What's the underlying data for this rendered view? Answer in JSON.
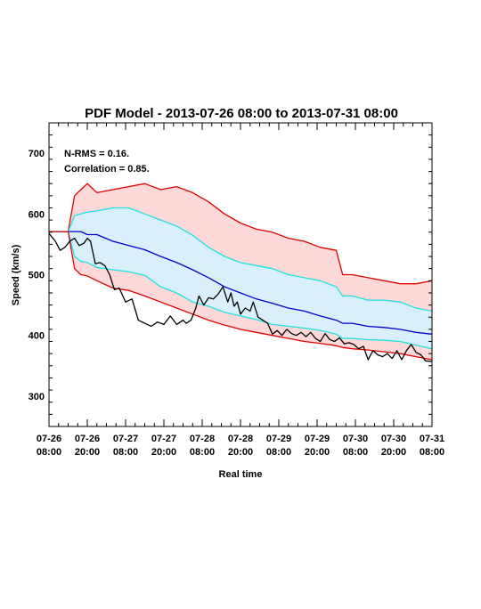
{
  "chart_data": {
    "type": "line",
    "title": "PDF Model - 2013-07-26 08:00 to 2013-07-31 08:00",
    "xlabel": "Real time",
    "ylabel": "Speed (km/s)",
    "xlim_hours": [
      0,
      120
    ],
    "ylim": [
      250,
      750
    ],
    "yticks": [
      300,
      400,
      500,
      600,
      700
    ],
    "xticks": [
      {
        "hour": 0,
        "date": "07-26",
        "time": "08:00"
      },
      {
        "hour": 12,
        "date": "07-26",
        "time": "20:00"
      },
      {
        "hour": 24,
        "date": "07-27",
        "time": "08:00"
      },
      {
        "hour": 36,
        "date": "07-27",
        "time": "20:00"
      },
      {
        "hour": 48,
        "date": "07-28",
        "time": "08:00"
      },
      {
        "hour": 60,
        "date": "07-28",
        "time": "20:00"
      },
      {
        "hour": 72,
        "date": "07-29",
        "time": "08:00"
      },
      {
        "hour": 84,
        "date": "07-29",
        "time": "20:00"
      },
      {
        "hour": 96,
        "date": "07-30",
        "time": "08:00"
      },
      {
        "hour": 108,
        "date": "07-30",
        "time": "20:00"
      },
      {
        "hour": 120,
        "date": "07-31",
        "time": "08:00"
      }
    ],
    "annotations": [
      "N-RMS = 0.16.",
      "Correlation = 0.85."
    ],
    "x_hours": [
      0,
      6,
      8,
      10,
      12,
      15,
      20,
      25,
      30,
      35,
      40,
      45,
      50,
      55,
      60,
      65,
      70,
      75,
      80,
      85,
      90,
      92,
      95,
      100,
      105,
      110,
      115,
      120
    ],
    "series": [
      {
        "role": "outer-upper",
        "color": "#e00000",
        "values": [
          571,
          571,
          630,
          640,
          650,
          635,
          640,
          645,
          650,
          640,
          645,
          635,
          620,
          600,
          585,
          575,
          570,
          560,
          555,
          545,
          540,
          500,
          500,
          495,
          490,
          485,
          485,
          490
        ]
      },
      {
        "role": "inner-upper",
        "color": "#20e0e0",
        "values": [
          571,
          571,
          597,
          600,
          603,
          605,
          610,
          610,
          600,
          590,
          580,
          565,
          545,
          530,
          520,
          515,
          510,
          500,
          495,
          490,
          480,
          465,
          465,
          458,
          458,
          455,
          445,
          440
        ]
      },
      {
        "role": "median",
        "color": "#0000cc",
        "values": [
          571,
          571,
          571,
          571,
          566,
          566,
          555,
          548,
          541,
          530,
          520,
          508,
          495,
          480,
          470,
          460,
          453,
          445,
          440,
          432,
          425,
          420,
          420,
          415,
          413,
          410,
          405,
          402
        ]
      },
      {
        "role": "inner-lower",
        "color": "#20e0e0",
        "values": [
          571,
          571,
          530,
          522,
          520,
          512,
          508,
          505,
          499,
          480,
          470,
          455,
          448,
          438,
          432,
          426,
          418,
          415,
          412,
          408,
          402,
          395,
          395,
          393,
          392,
          390,
          384,
          378
        ]
      },
      {
        "role": "outer-lower",
        "color": "#e00000",
        "values": [
          571,
          571,
          510,
          500,
          498,
          490,
          478,
          474,
          465,
          455,
          445,
          435,
          425,
          417,
          410,
          405,
          400,
          395,
          390,
          387,
          383,
          380,
          378,
          376,
          373,
          370,
          365,
          360
        ]
      }
    ],
    "observed": {
      "color": "#000000",
      "x_hours": [
        0,
        2,
        3.5,
        5,
        6.5,
        8,
        9.5,
        11,
        12,
        13,
        14.5,
        16,
        17.5,
        19,
        20.5,
        22,
        24,
        26,
        28,
        30,
        32,
        34,
        36,
        38,
        40,
        42,
        43,
        44.5,
        46,
        47,
        48.5,
        50,
        51.5,
        53,
        54.5,
        56,
        57,
        58,
        59,
        60,
        61.5,
        63,
        64,
        65.5,
        67,
        68.5,
        70,
        71.5,
        73,
        74.5,
        76,
        77.5,
        79,
        80.5,
        82,
        83.5,
        85,
        86.5,
        88,
        89.5,
        91,
        92.5,
        94,
        95.5,
        97,
        98.5,
        100,
        101.5,
        103,
        104.5,
        106,
        107.5,
        109,
        110.5,
        112,
        113.5,
        115,
        116.5,
        118,
        120
      ],
      "values": [
        568,
        555,
        540,
        545,
        555,
        560,
        548,
        552,
        560,
        555,
        518,
        520,
        515,
        500,
        475,
        478,
        455,
        460,
        425,
        420,
        415,
        422,
        418,
        432,
        418,
        425,
        420,
        425,
        445,
        465,
        450,
        462,
        460,
        468,
        480,
        455,
        470,
        448,
        455,
        435,
        445,
        440,
        455,
        430,
        425,
        420,
        402,
        408,
        400,
        410,
        403,
        400,
        405,
        398,
        405,
        395,
        390,
        403,
        393,
        390,
        396,
        386,
        388,
        385,
        378,
        382,
        360,
        375,
        368,
        365,
        370,
        362,
        375,
        360,
        375,
        385,
        372,
        368,
        358,
        357
      ]
    },
    "fills": {
      "outer_band": "#ffd9d9",
      "inner_band": "#d9f0fc"
    },
    "grid": false,
    "legend": "none"
  }
}
